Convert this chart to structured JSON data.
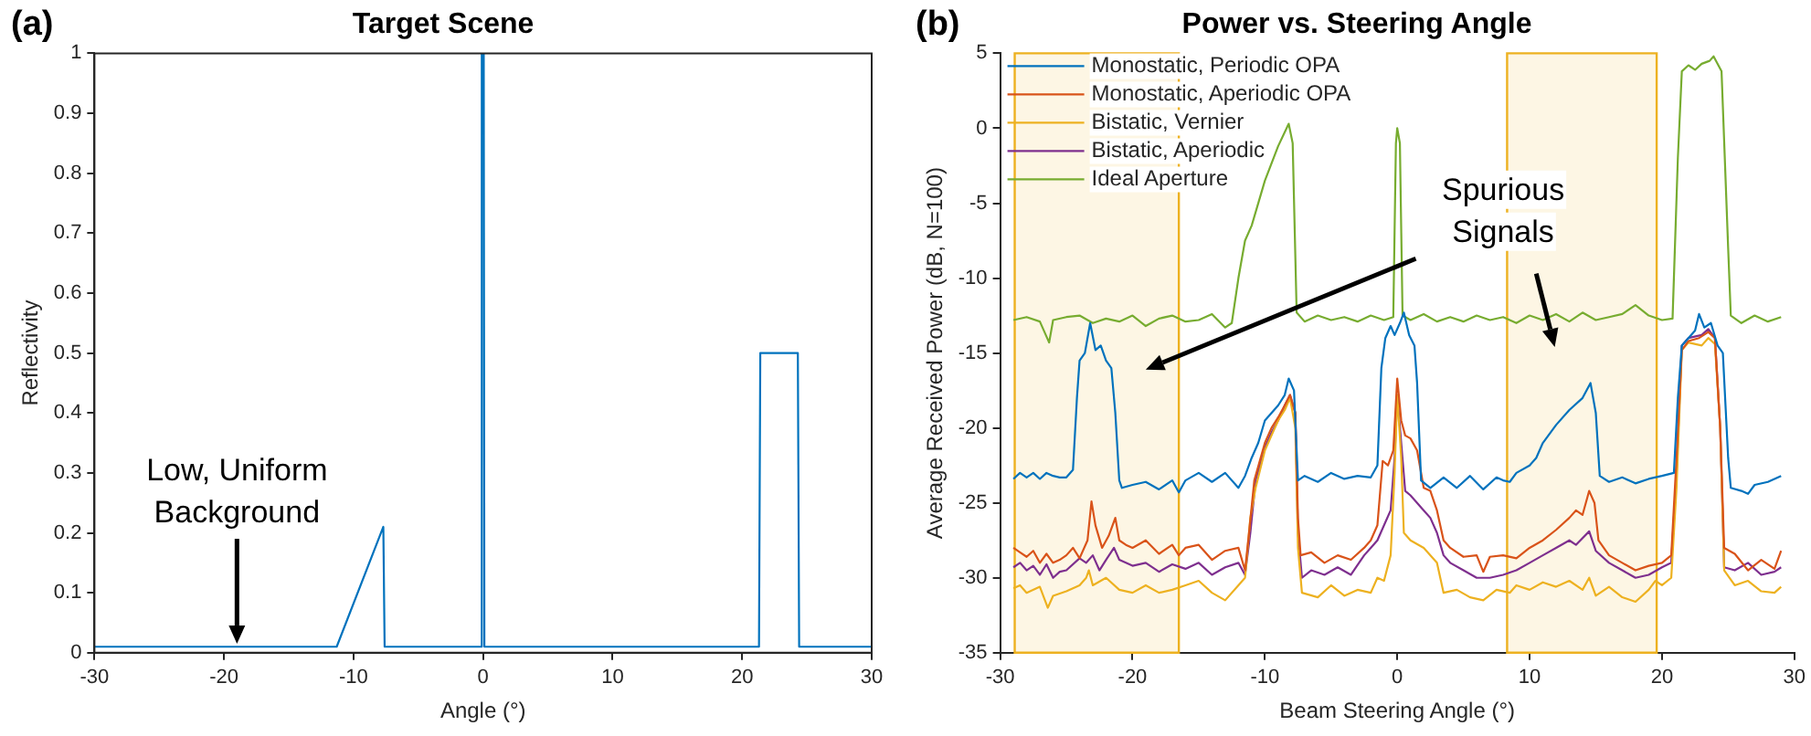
{
  "chart_data": [
    {
      "type": "line",
      "title": "Target Scene",
      "xlabel": "Angle (°)",
      "ylabel": "Reflectivity",
      "x": [
        -30,
        -11.3,
        -7.7,
        -7.6,
        -0.15,
        -0.1,
        0.05,
        0.1,
        21.3,
        21.4,
        24.3,
        24.4,
        30
      ],
      "series": [
        {
          "color": "#0072bd",
          "values": [
            0.01,
            0.01,
            0.21,
            0.01,
            0.01,
            1,
            1,
            0.01,
            0.01,
            0.5,
            0.5,
            0.01,
            0.01
          ]
        }
      ],
      "xlim": [
        -30,
        30
      ],
      "xticks": [
        -30,
        -20,
        -10,
        0,
        10,
        20,
        30
      ],
      "ylim": [
        0,
        1
      ],
      "yticks": [
        0,
        0.1,
        0.2,
        0.3,
        0.4,
        0.5,
        0.6,
        0.7,
        0.8,
        0.9,
        1
      ],
      "annotations": [
        "(a)",
        "Low, Uniform Background"
      ]
    },
    {
      "type": "line",
      "title": "Power vs. Steering Angle",
      "xlabel": "Beam Steering Angle (°)",
      "ylabel": "Average Received Power (dB, N=100)",
      "series": [
        {
          "name": "Monostatic, Periodic OPA",
          "color": "#0072bd",
          "x": [
            -29,
            -28.5,
            -28,
            -27.5,
            -27,
            -26.5,
            -26,
            -25.5,
            -25,
            -24.5,
            -24.2,
            -24,
            -23.6,
            -23.2,
            -22.8,
            -22.4,
            -22,
            -21.6,
            -21.3,
            -21,
            -20.8,
            -20,
            -19,
            -18,
            -17,
            -16.5,
            -16,
            -15,
            -14,
            -13,
            -12,
            -11.5,
            -11,
            -10.5,
            -10,
            -9.5,
            -9,
            -8.5,
            -8.2,
            -7.8,
            -7.5,
            -7,
            -6,
            -5,
            -4,
            -3,
            -2,
            -1.5,
            -1.2,
            -0.9,
            -0.5,
            -0.2,
            0.2,
            0.5,
            0.9,
            1.3,
            1.5,
            1.8,
            2.5,
            3.5,
            4.5,
            5.5,
            6.5,
            7.5,
            8,
            8.5,
            9,
            10,
            10.5,
            11,
            12,
            13,
            14,
            14.6,
            15,
            15.3,
            16,
            17,
            18,
            19,
            20,
            20.9,
            21.2,
            21.5,
            22,
            22.5,
            22.8,
            23.2,
            23.7,
            24.2,
            24.6,
            25,
            25.2,
            26,
            26.5,
            27,
            28,
            29
          ],
          "values": [
            -23.4,
            -23.0,
            -23.3,
            -23.0,
            -23.4,
            -23.0,
            -23.2,
            -23.3,
            -23.3,
            -22.8,
            -18,
            -15.5,
            -15.0,
            -13.0,
            -14.8,
            -14.5,
            -15.5,
            -16.0,
            -19,
            -23.5,
            -24.0,
            -23.8,
            -23.6,
            -24.1,
            -23.5,
            -24.3,
            -23.5,
            -23.0,
            -23.6,
            -23.0,
            -24.0,
            -23.2,
            -22.0,
            -21.0,
            -19.5,
            -19.0,
            -18.5,
            -17.8,
            -16.7,
            -17.5,
            -23.5,
            -23.2,
            -23.6,
            -23.0,
            -23.4,
            -23.2,
            -23.3,
            -22.5,
            -16,
            -14.0,
            -13.2,
            -13.8,
            -13.0,
            -12.3,
            -13.8,
            -14.5,
            -17,
            -23.5,
            -24.0,
            -23.3,
            -24.0,
            -23.2,
            -24.1,
            -23.3,
            -23.5,
            -23.6,
            -23.0,
            -22.5,
            -22.0,
            -21.0,
            -19.8,
            -18.8,
            -18.0,
            -17.0,
            -19,
            -23.2,
            -23.6,
            -23.3,
            -23.7,
            -23.4,
            -23.2,
            -23.0,
            -18,
            -14.5,
            -14.0,
            -13.5,
            -12.4,
            -13.3,
            -13.0,
            -14.5,
            -15,
            -22,
            -24.0,
            -24.2,
            -24.4,
            -23.8,
            -23.6,
            -23.2
          ]
        },
        {
          "name": "Monostatic, Aperiodic OPA",
          "color": "#d95319",
          "x": [
            -29,
            -28.5,
            -28,
            -27.5,
            -27,
            -26.5,
            -26,
            -25.5,
            -25,
            -24.5,
            -24,
            -23.4,
            -23.1,
            -22.8,
            -22.3,
            -21.8,
            -21.3,
            -21,
            -20.5,
            -20,
            -19,
            -18,
            -17,
            -16.5,
            -16,
            -15,
            -14,
            -13,
            -12,
            -11.5,
            -11.2,
            -10.8,
            -10,
            -9.5,
            -9,
            -8.5,
            -8.1,
            -7.7,
            -7.5,
            -7.3,
            -6.5,
            -5.5,
            -4.5,
            -3.5,
            -2.5,
            -2,
            -1.5,
            -1.1,
            -0.7,
            -0.3,
            0,
            0.3,
            0.6,
            1,
            1.5,
            2,
            2.5,
            3,
            3.5,
            4,
            5,
            6,
            6.5,
            7,
            8,
            9,
            10,
            11,
            12,
            13,
            13.5,
            14,
            14.5,
            14.9,
            15.2,
            16,
            17,
            18,
            19,
            20,
            20.7,
            21.1,
            21.5,
            22,
            22.8,
            23.5,
            24,
            24.4,
            24.7,
            25.5,
            26.5,
            27.5,
            28.5,
            29
          ],
          "values": [
            -28.0,
            -28.3,
            -28.6,
            -28.2,
            -29.0,
            -28.4,
            -29.0,
            -28.8,
            -28.5,
            -28.0,
            -28.7,
            -27.5,
            -24.9,
            -26.5,
            -28.0,
            -27.2,
            -26.0,
            -27.5,
            -27.8,
            -28.0,
            -27.5,
            -28.4,
            -27.8,
            -28.5,
            -28.0,
            -27.8,
            -28.8,
            -28.2,
            -28.0,
            -29.5,
            -27,
            -23.5,
            -21.0,
            -20.0,
            -19.3,
            -18.5,
            -17.8,
            -19,
            -26,
            -28.5,
            -28.3,
            -29.0,
            -28.5,
            -28.8,
            -28.0,
            -27.5,
            -26.5,
            -22.2,
            -22.5,
            -21.5,
            -16.7,
            -19.5,
            -20.5,
            -20.7,
            -21.5,
            -24.0,
            -24.2,
            -25.5,
            -27.5,
            -28.0,
            -28.6,
            -28.5,
            -29.6,
            -28.6,
            -28.5,
            -28.7,
            -28.0,
            -27.5,
            -26.8,
            -26.0,
            -25.5,
            -25.8,
            -24.2,
            -25.0,
            -27.5,
            -28.5,
            -29.0,
            -29.5,
            -29.2,
            -29.0,
            -28.5,
            -22,
            -14.8,
            -14.2,
            -14.0,
            -13.6,
            -14.0,
            -20,
            -28.0,
            -28.4,
            -29.5,
            -28.8,
            -29.4,
            -28.2
          ]
        },
        {
          "name": "Bistatic, Vernier",
          "color": "#edb120",
          "x": [
            -29,
            -28.5,
            -28,
            -27,
            -26.4,
            -26,
            -25,
            -24,
            -23.5,
            -23.3,
            -23,
            -22,
            -21,
            -20,
            -19,
            -18,
            -17,
            -16,
            -15,
            -14,
            -13,
            -12,
            -11.5,
            -11.1,
            -10.7,
            -10,
            -9.5,
            -9,
            -8.5,
            -8.1,
            -7.7,
            -7.5,
            -7.2,
            -6,
            -5,
            -4,
            -3,
            -2,
            -1.5,
            -1,
            -0.5,
            -0.2,
            0,
            0.3,
            0.5,
            1,
            2,
            3,
            3.5,
            4.5,
            5.5,
            6.5,
            7.5,
            8.5,
            9,
            10,
            11,
            12,
            13,
            14,
            14.5,
            15,
            16,
            17,
            18,
            19,
            19.5,
            20,
            20.7,
            21.1,
            21.5,
            22,
            23,
            23.5,
            24,
            24.4,
            24.7,
            25.5,
            26.5,
            27.5,
            28.5,
            29
          ],
          "values": [
            -30.7,
            -30.5,
            -31.0,
            -30.6,
            -32.0,
            -31.2,
            -30.9,
            -30.5,
            -30.0,
            -29.5,
            -30.5,
            -30.0,
            -30.8,
            -31.0,
            -30.5,
            -31.0,
            -30.8,
            -30.5,
            -30.2,
            -31.0,
            -31.5,
            -30.5,
            -30.0,
            -26,
            -24.0,
            -21.5,
            -20.5,
            -19.5,
            -18.8,
            -18.0,
            -20,
            -28,
            -31.0,
            -31.3,
            -30.5,
            -31.2,
            -30.8,
            -31.0,
            -30.0,
            -30.2,
            -28.5,
            -23,
            -17.8,
            -22,
            -27.0,
            -27.5,
            -28.0,
            -29.0,
            -31.0,
            -30.8,
            -31.3,
            -31.5,
            -30.8,
            -31.0,
            -30.5,
            -30.8,
            -30.3,
            -30.6,
            -30.2,
            -30.8,
            -30.0,
            -31.2,
            -30.6,
            -31.3,
            -31.6,
            -30.8,
            -30.2,
            -30.5,
            -30.0,
            -24,
            -14.8,
            -14.3,
            -14.5,
            -14.0,
            -14.4,
            -20,
            -29.5,
            -30.5,
            -30.2,
            -30.9,
            -31.0,
            -30.6
          ]
        },
        {
          "name": "Bistatic, Aperiodic",
          "color": "#7e2f8e",
          "x": [
            -29,
            -28.5,
            -28,
            -27.5,
            -27,
            -26.5,
            -26,
            -25.5,
            -25,
            -24,
            -23.5,
            -23,
            -22.5,
            -22,
            -21.4,
            -21,
            -20,
            -19,
            -18,
            -17,
            -16,
            -15,
            -14,
            -13,
            -12,
            -11.5,
            -11.1,
            -10.7,
            -10,
            -9.5,
            -9,
            -8.5,
            -8.1,
            -7.7,
            -7.5,
            -7.2,
            -6.5,
            -5.5,
            -4.5,
            -3.5,
            -2.5,
            -2,
            -1.5,
            -1,
            -0.5,
            -0.2,
            0,
            0.3,
            0.6,
            1,
            1.5,
            2,
            2.5,
            3,
            3.5,
            4,
            5,
            6,
            7,
            8,
            9,
            10,
            11,
            12,
            13,
            13.5,
            14.5,
            15,
            16,
            17,
            18,
            19,
            20,
            20.7,
            21.1,
            21.5,
            22,
            23,
            23.5,
            24,
            24.4,
            24.7,
            25.5,
            26.5,
            27.5,
            28.5,
            29
          ],
          "values": [
            -29.3,
            -29.0,
            -29.5,
            -29.2,
            -29.8,
            -29.1,
            -30.0,
            -29.6,
            -29.5,
            -28.7,
            -29.0,
            -28.5,
            -29.5,
            -28.8,
            -28.0,
            -28.8,
            -29.2,
            -29.0,
            -29.6,
            -29.1,
            -29.4,
            -29.0,
            -29.8,
            -29.3,
            -29.0,
            -29.8,
            -27,
            -23.5,
            -21.3,
            -20.3,
            -19.5,
            -18.5,
            -17.8,
            -19,
            -27,
            -30.0,
            -29.5,
            -29.8,
            -29.3,
            -29.8,
            -28.5,
            -28.0,
            -27.5,
            -26.5,
            -25.5,
            -22,
            -17.8,
            -21,
            -24.2,
            -24.5,
            -25.0,
            -25.5,
            -26.0,
            -27.0,
            -28.5,
            -29.0,
            -29.5,
            -30.0,
            -30.0,
            -29.8,
            -29.5,
            -29.0,
            -28.5,
            -28.0,
            -27.5,
            -27.8,
            -26.9,
            -28.2,
            -29.0,
            -29.5,
            -30.0,
            -29.8,
            -29.3,
            -29.0,
            -23,
            -14.5,
            -14.0,
            -13.8,
            -13.4,
            -14.0,
            -20,
            -29.3,
            -29.5,
            -29.0,
            -29.8,
            -29.6,
            -29.3
          ]
        },
        {
          "name": "Ideal Aperture",
          "color": "#77ac30",
          "x": [
            -29,
            -28,
            -27,
            -26.3,
            -26,
            -25,
            -24,
            -23,
            -22,
            -21,
            -20,
            -19,
            -18,
            -17,
            -16,
            -15,
            -14,
            -13,
            -12.5,
            -12,
            -11.5,
            -11,
            -10,
            -9,
            -8.2,
            -7.9,
            -7.6,
            -7,
            -6,
            -5,
            -4,
            -3,
            -2,
            -1,
            -0.3,
            -0.1,
            0,
            0.2,
            0.4,
            1,
            2,
            3,
            4,
            5,
            6,
            7,
            8,
            9,
            10,
            11,
            12,
            13,
            14,
            15,
            16,
            17,
            18,
            19,
            20,
            20.8,
            21.2,
            21.5,
            22,
            22.5,
            23,
            23.6,
            23.9,
            24.5,
            25,
            25.2,
            26,
            27,
            28,
            29
          ],
          "values": [
            -12.8,
            -12.6,
            -12.9,
            -14.3,
            -12.8,
            -12.6,
            -12.5,
            -13.0,
            -12.7,
            -12.9,
            -12.5,
            -13.2,
            -12.7,
            -12.5,
            -12.9,
            -12.8,
            -12.4,
            -13.3,
            -13.0,
            -10,
            -7.5,
            -6.5,
            -3.5,
            -1.2,
            0.3,
            -1,
            -12.3,
            -12.9,
            -12.5,
            -12.8,
            -12.6,
            -12.9,
            -12.5,
            -12.8,
            -12.6,
            -1,
            0,
            -1,
            -12.5,
            -12.8,
            -12.4,
            -12.9,
            -12.6,
            -12.9,
            -12.5,
            -12.8,
            -12.6,
            -13.0,
            -12.5,
            -12.8,
            -12.4,
            -12.9,
            -12.3,
            -12.8,
            -12.6,
            -12.4,
            -11.8,
            -12.5,
            -12.8,
            -12.7,
            -2,
            3.8,
            4.2,
            3.9,
            4.3,
            4.5,
            4.8,
            3.8,
            -8,
            -12.5,
            -13.0,
            -12.5,
            -12.9,
            -12.6
          ]
        }
      ],
      "bands": [
        {
          "axis": "x",
          "from": -28.9,
          "to": -16.5,
          "color": "#edb120"
        },
        {
          "axis": "x",
          "from": 8.3,
          "to": 19.6,
          "color": "#edb120"
        }
      ],
      "legend": "top left",
      "xlim": [
        -30,
        30
      ],
      "xticks": [
        -30,
        -20,
        -10,
        0,
        10,
        20,
        30
      ],
      "ylim": [
        -35,
        5
      ],
      "yticks": [
        -35,
        -30,
        -25,
        -20,
        -15,
        -10,
        -5,
        0,
        5
      ],
      "annotations": [
        "(b)",
        "Spurious Signals"
      ]
    }
  ]
}
